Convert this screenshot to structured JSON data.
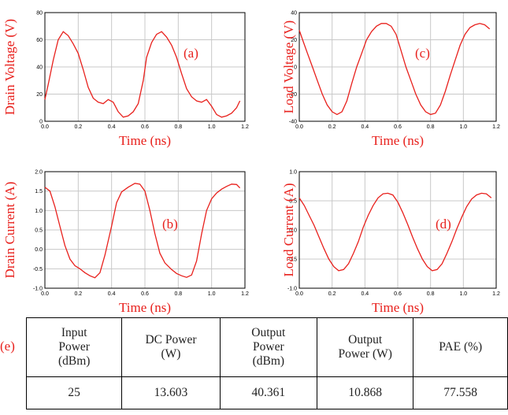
{
  "chart_data": [
    {
      "type": "line",
      "panel_label": "(a)",
      "xlabel": "Time (ns)",
      "ylabel": "Drain Voltage (V)",
      "xlim": [
        0,
        1.2
      ],
      "ylim": [
        0,
        80
      ],
      "x_ticks": [
        "0.0",
        "0.2",
        "0.4",
        "0.6",
        "0.8",
        "1.0",
        "1.2"
      ],
      "y_ticks": [
        "0",
        "20",
        "40",
        "60",
        "80"
      ],
      "grid": true,
      "series": [
        {
          "x": [
            0,
            0.02,
            0.05,
            0.08,
            0.11,
            0.14,
            0.17,
            0.2,
            0.23,
            0.26,
            0.29,
            0.32,
            0.35,
            0.38,
            0.41,
            0.44,
            0.47,
            0.5,
            0.53,
            0.56,
            0.59,
            0.61,
            0.64,
            0.67,
            0.7,
            0.73,
            0.76,
            0.79,
            0.82,
            0.85,
            0.88,
            0.91,
            0.94,
            0.97,
            1.0,
            1.03,
            1.06,
            1.09,
            1.12,
            1.15,
            1.17
          ],
          "y": [
            16,
            27,
            45,
            60,
            66,
            63,
            57,
            50,
            38,
            25,
            17,
            14,
            13,
            16,
            14,
            7,
            3,
            4,
            7,
            13,
            30,
            47,
            58,
            64,
            66,
            62,
            56,
            47,
            35,
            24,
            18,
            15,
            14,
            16,
            11,
            5,
            3,
            4,
            6,
            10,
            15
          ]
        }
      ]
    },
    {
      "type": "line",
      "panel_label": "(b)",
      "xlabel": "Time (ns)",
      "ylabel": "Drain Current (A)",
      "xlim": [
        0,
        1.2
      ],
      "ylim": [
        -1.0,
        2.0
      ],
      "x_ticks": [
        "0.0",
        "0.2",
        "0.4",
        "0.6",
        "0.8",
        "1.0",
        "1.2"
      ],
      "y_ticks": [
        "-1.0",
        "-0.5",
        "0.0",
        "0.5",
        "1.0",
        "1.5",
        "2.0"
      ],
      "grid": true,
      "series": [
        {
          "x": [
            0,
            0.03,
            0.06,
            0.09,
            0.12,
            0.15,
            0.18,
            0.21,
            0.24,
            0.27,
            0.3,
            0.33,
            0.36,
            0.4,
            0.43,
            0.46,
            0.5,
            0.54,
            0.57,
            0.6,
            0.63,
            0.66,
            0.69,
            0.72,
            0.76,
            0.79,
            0.82,
            0.85,
            0.88,
            0.91,
            0.94,
            0.97,
            1.0,
            1.03,
            1.06,
            1.09,
            1.12,
            1.15,
            1.17
          ],
          "y": [
            1.6,
            1.5,
            1.1,
            0.6,
            0.1,
            -0.25,
            -0.42,
            -0.5,
            -0.6,
            -0.68,
            -0.73,
            -0.6,
            -0.15,
            0.6,
            1.2,
            1.48,
            1.6,
            1.7,
            1.68,
            1.5,
            1.0,
            0.4,
            -0.1,
            -0.35,
            -0.52,
            -0.62,
            -0.68,
            -0.72,
            -0.66,
            -0.3,
            0.4,
            1.0,
            1.3,
            1.45,
            1.55,
            1.62,
            1.68,
            1.67,
            1.58
          ]
        }
      ]
    },
    {
      "type": "line",
      "panel_label": "(c)",
      "xlabel": "Time (ns)",
      "ylabel": "Load Voltage (V)",
      "xlim": [
        0,
        1.2
      ],
      "ylim": [
        -40,
        40
      ],
      "x_ticks": [
        "0.0",
        "0.2",
        "0.4",
        "0.6",
        "0.8",
        "1.0",
        "1.2"
      ],
      "y_ticks": [
        "-40",
        "-20",
        "0",
        "20",
        "40"
      ],
      "grid": true,
      "series": [
        {
          "x": [
            0,
            0.02,
            0.05,
            0.08,
            0.11,
            0.14,
            0.17,
            0.2,
            0.23,
            0.26,
            0.29,
            0.32,
            0.35,
            0.38,
            0.41,
            0.44,
            0.47,
            0.5,
            0.53,
            0.56,
            0.59,
            0.62,
            0.65,
            0.68,
            0.71,
            0.74,
            0.77,
            0.8,
            0.83,
            0.86,
            0.89,
            0.92,
            0.95,
            0.98,
            1.01,
            1.04,
            1.07,
            1.1,
            1.13,
            1.16
          ],
          "y": [
            27,
            20,
            10,
            0,
            -10,
            -20,
            -28,
            -33,
            -35,
            -33,
            -25,
            -12,
            0,
            10,
            20,
            26,
            30,
            32,
            32,
            30,
            24,
            12,
            0,
            -10,
            -20,
            -28,
            -33,
            -35,
            -34,
            -28,
            -18,
            -6,
            5,
            16,
            24,
            29,
            31,
            32,
            31,
            28
          ]
        }
      ]
    },
    {
      "type": "line",
      "panel_label": "(d)",
      "xlabel": "Time (ns)",
      "ylabel": "Load Current (A)",
      "xlim": [
        0,
        1.2
      ],
      "ylim": [
        -1.0,
        1.0
      ],
      "x_ticks": [
        "0.0",
        "0.2",
        "0.4",
        "0.6",
        "0.8",
        "1.0",
        "1.2"
      ],
      "y_ticks": [
        "-1.0",
        "-0.5",
        "0.0",
        "0.5",
        "1.0"
      ],
      "grid": true,
      "series": [
        {
          "x": [
            0,
            0.03,
            0.06,
            0.09,
            0.12,
            0.15,
            0.18,
            0.21,
            0.24,
            0.27,
            0.3,
            0.33,
            0.36,
            0.39,
            0.42,
            0.45,
            0.48,
            0.51,
            0.54,
            0.57,
            0.6,
            0.63,
            0.66,
            0.69,
            0.72,
            0.75,
            0.78,
            0.81,
            0.84,
            0.87,
            0.9,
            0.93,
            0.96,
            0.99,
            1.02,
            1.05,
            1.08,
            1.11,
            1.14,
            1.17
          ],
          "y": [
            0.55,
            0.42,
            0.25,
            0.08,
            -0.12,
            -0.32,
            -0.5,
            -0.63,
            -0.7,
            -0.68,
            -0.58,
            -0.4,
            -0.2,
            0.05,
            0.25,
            0.42,
            0.55,
            0.62,
            0.63,
            0.6,
            0.48,
            0.3,
            0.1,
            -0.12,
            -0.32,
            -0.5,
            -0.63,
            -0.7,
            -0.68,
            -0.58,
            -0.4,
            -0.2,
            0.02,
            0.22,
            0.4,
            0.53,
            0.6,
            0.63,
            0.62,
            0.55
          ]
        }
      ]
    }
  ],
  "table": {
    "label": "(e)",
    "headers": [
      [
        "Input",
        "Power",
        "(dBm)"
      ],
      [
        "DC Power",
        "(W)"
      ],
      [
        "Output",
        "Power",
        "(dBm)"
      ],
      [
        "Output",
        "Power (W)"
      ],
      [
        "PAE (%)"
      ]
    ],
    "values": [
      "25",
      "13.603",
      "40.361",
      "10.868",
      "77.558"
    ]
  }
}
